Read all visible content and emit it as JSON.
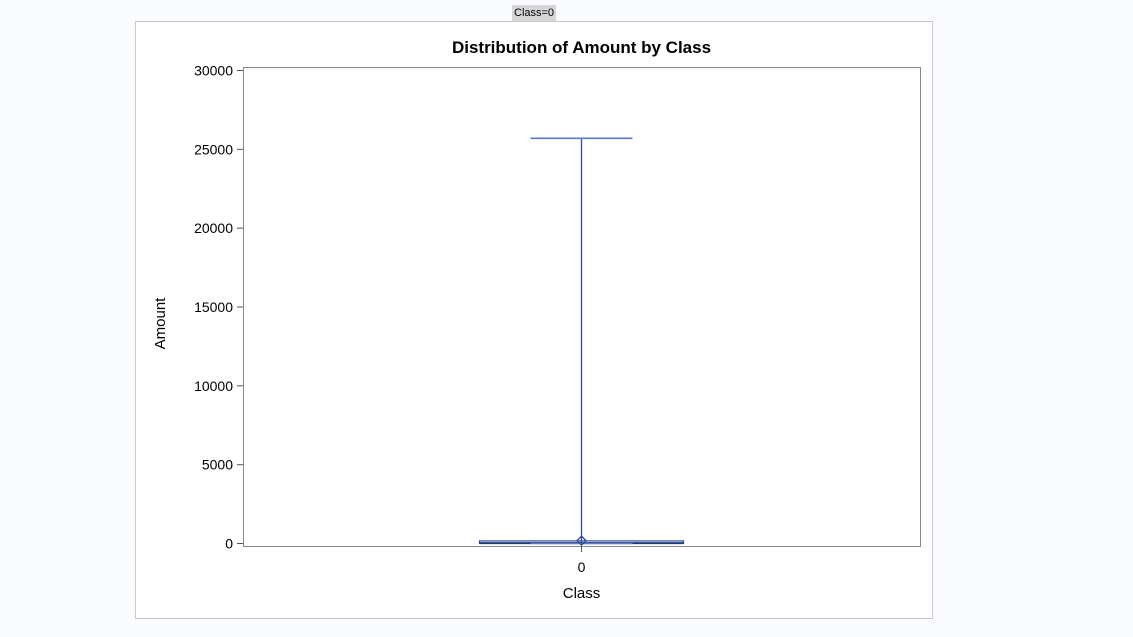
{
  "page_label": "Class=0",
  "colors": {
    "box": "#2c4a9c",
    "whisker": "#2c4a9c",
    "whisker_cap": "#5a7ac6",
    "median": "#1e3a7a",
    "mean_marker": "#2c4a9c",
    "frame": "#888888"
  },
  "chart_data": {
    "type": "box",
    "title": "Distribution of Amount by Class",
    "xlabel": "Class",
    "ylabel": "Amount",
    "ylim": [
      0,
      30000
    ],
    "yticks": [
      0,
      5000,
      10000,
      15000,
      20000,
      25000,
      30000
    ],
    "ytick_labels": [
      "0",
      "5000",
      "10000",
      "15000",
      "20000",
      "25000",
      "30000"
    ],
    "categories": [
      "0"
    ],
    "boxes": [
      {
        "category": "0",
        "min": 0,
        "q1": 5,
        "median": 22,
        "q3": 77,
        "max": 25700,
        "mean": 88
      }
    ],
    "grid": false,
    "legend": "none"
  }
}
